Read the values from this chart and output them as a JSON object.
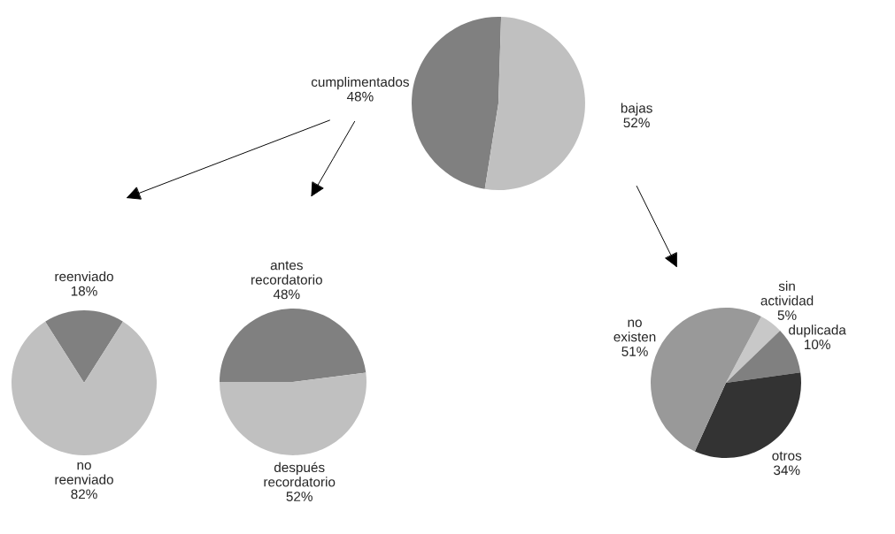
{
  "chart_data": [
    {
      "type": "pie",
      "categories": [
        "cumplimentados",
        "bajas"
      ],
      "values": [
        48,
        52
      ],
      "value_labels": [
        "48%",
        "52%"
      ],
      "colors": [
        "#808080",
        "#c0c0c0"
      ]
    },
    {
      "type": "pie",
      "categories": [
        "reenviado",
        "no reenviado"
      ],
      "values": [
        18,
        82
      ],
      "value_labels": [
        "18%",
        "82%"
      ],
      "colors": [
        "#808080",
        "#c0c0c0"
      ]
    },
    {
      "type": "pie",
      "categories": [
        "antes recordatorio",
        "después recordatorio"
      ],
      "values": [
        48,
        52
      ],
      "value_labels": [
        "48%",
        "52%"
      ],
      "colors": [
        "#808080",
        "#c0c0c0"
      ]
    },
    {
      "type": "pie",
      "categories": [
        "sin actividad",
        "duplicada",
        "otros",
        "no existen"
      ],
      "values": [
        5,
        10,
        34,
        51
      ],
      "value_labels": [
        "5%",
        "10%",
        "34%",
        "51%"
      ],
      "colors": [
        "#c8c8c8",
        "#808080",
        "#333333",
        "#999999"
      ]
    }
  ]
}
